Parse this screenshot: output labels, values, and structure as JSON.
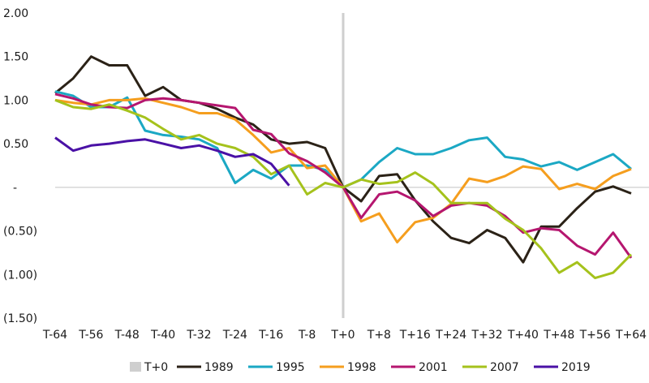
{
  "chart_data": {
    "type": "line",
    "title": "",
    "xlabel": "",
    "ylabel": "",
    "ylim": [
      -1.5,
      2.0
    ],
    "xlim": [
      -64,
      64
    ],
    "grid": false,
    "legend_position": "bottom",
    "y_ticks": [
      {
        "value": 2.0,
        "label": "2.00"
      },
      {
        "value": 1.5,
        "label": "1.50"
      },
      {
        "value": 1.0,
        "label": "1.00"
      },
      {
        "value": 0.5,
        "label": "0.50"
      },
      {
        "value": 0,
        "label": "-"
      },
      {
        "value": -0.5,
        "label": "(0.50)"
      },
      {
        "value": -1.0,
        "label": "(1.00)"
      },
      {
        "value": -1.5,
        "label": "(1.50)"
      }
    ],
    "x_ticks": [
      {
        "value": -64,
        "label": "T-64"
      },
      {
        "value": -56,
        "label": "T-56"
      },
      {
        "value": -48,
        "label": "T-48"
      },
      {
        "value": -40,
        "label": "T-40"
      },
      {
        "value": -32,
        "label": "T-32"
      },
      {
        "value": -24,
        "label": "T-24"
      },
      {
        "value": -16,
        "label": "T-16"
      },
      {
        "value": -8,
        "label": "T-8"
      },
      {
        "value": 0,
        "label": "T+0"
      },
      {
        "value": 8,
        "label": "T+8"
      },
      {
        "value": 16,
        "label": "T+16"
      },
      {
        "value": 24,
        "label": "T+24"
      },
      {
        "value": 32,
        "label": "T+32"
      },
      {
        "value": 40,
        "label": "T+40"
      },
      {
        "value": 48,
        "label": "T+48"
      },
      {
        "value": 56,
        "label": "T+56"
      },
      {
        "value": 64,
        "label": "T+64"
      }
    ],
    "reference_line": {
      "name": "T+0",
      "x": 0,
      "color": "#cfcfcf"
    },
    "x": [
      -64,
      -60,
      -56,
      -52,
      -48,
      -44,
      -40,
      -36,
      -32,
      -28,
      -24,
      -20,
      -16,
      -12,
      -8,
      -4,
      0,
      4,
      8,
      12,
      16,
      20,
      24,
      28,
      32,
      36,
      40,
      44,
      48,
      52,
      56,
      60,
      64
    ],
    "series": [
      {
        "name": "1989",
        "color": "#2b2217",
        "values": [
          1.08,
          1.25,
          1.5,
          1.4,
          1.4,
          1.05,
          1.15,
          1.0,
          0.97,
          0.9,
          0.8,
          0.72,
          0.55,
          0.5,
          0.52,
          0.45,
          0.0,
          -0.16,
          0.13,
          0.15,
          -0.15,
          -0.39,
          -0.58,
          -0.64,
          -0.49,
          -0.58,
          -0.86,
          -0.45,
          -0.45,
          -0.24,
          -0.05,
          0.01,
          -0.07
        ]
      },
      {
        "name": "1995",
        "color": "#1ba8c4",
        "values": [
          1.1,
          1.05,
          0.92,
          0.92,
          1.03,
          0.65,
          0.6,
          0.58,
          0.55,
          0.45,
          0.05,
          0.2,
          0.1,
          0.25,
          0.25,
          0.2,
          0.0,
          0.09,
          0.29,
          0.45,
          0.38,
          0.38,
          0.45,
          0.54,
          0.57,
          0.35,
          0.32,
          0.24,
          0.29,
          0.2,
          0.29,
          0.38,
          0.21
        ]
      },
      {
        "name": "1998",
        "color": "#f59e1e",
        "values": [
          1.0,
          0.97,
          0.95,
          1.0,
          1.0,
          1.02,
          0.97,
          0.92,
          0.85,
          0.85,
          0.78,
          0.6,
          0.4,
          0.45,
          0.22,
          0.25,
          0.0,
          -0.39,
          -0.3,
          -0.63,
          -0.4,
          -0.35,
          -0.19,
          0.1,
          0.06,
          0.13,
          0.24,
          0.21,
          -0.02,
          0.04,
          -0.02,
          0.13,
          0.21
        ]
      },
      {
        "name": "2001",
        "color": "#b5166f",
        "values": [
          1.07,
          1.02,
          0.95,
          0.92,
          0.91,
          1.0,
          1.02,
          1.0,
          0.97,
          0.94,
          0.91,
          0.66,
          0.61,
          0.39,
          0.3,
          0.17,
          0.0,
          -0.35,
          -0.08,
          -0.05,
          -0.15,
          -0.33,
          -0.21,
          -0.18,
          -0.21,
          -0.33,
          -0.52,
          -0.47,
          -0.49,
          -0.67,
          -0.77,
          -0.52,
          -0.81
        ]
      },
      {
        "name": "2007",
        "color": "#a5c21c",
        "values": [
          1.0,
          0.92,
          0.9,
          0.95,
          0.88,
          0.8,
          0.67,
          0.55,
          0.6,
          0.5,
          0.45,
          0.35,
          0.15,
          0.25,
          -0.08,
          0.05,
          0.0,
          0.09,
          0.04,
          0.06,
          0.17,
          0.04,
          -0.18,
          -0.18,
          -0.18,
          -0.36,
          -0.49,
          -0.7,
          -0.98,
          -0.86,
          -1.04,
          -0.98,
          -0.77
        ]
      },
      {
        "name": "2019",
        "color": "#4a11a6",
        "values": [
          0.57,
          0.42,
          0.48,
          0.5,
          0.53,
          0.55,
          0.5,
          0.45,
          0.48,
          0.42,
          0.35,
          0.38,
          0.27,
          0.02,
          null,
          null,
          null,
          null,
          null,
          null,
          null,
          null,
          null,
          null,
          null,
          null,
          null,
          null,
          null,
          null,
          null,
          null,
          null
        ]
      }
    ]
  }
}
